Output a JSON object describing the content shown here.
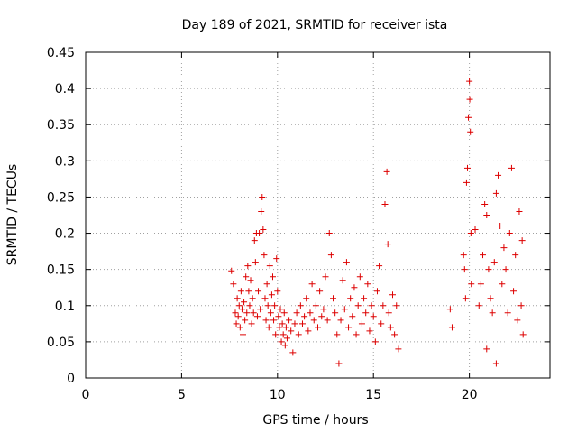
{
  "chart_data": {
    "type": "scatter",
    "title": "Day 189 of 2021, SRMTID for receiver ista",
    "xlabel": "GPS time / hours",
    "ylabel": "SRMTID / TECUs",
    "xlim": [
      0,
      24.2
    ],
    "ylim": [
      0,
      0.45
    ],
    "x_ticks": [
      0,
      5,
      10,
      15,
      20
    ],
    "x_tick_labels": [
      "0",
      "5",
      "10",
      "15",
      "20"
    ],
    "y_ticks": [
      0,
      0.05,
      0.1,
      0.15,
      0.2,
      0.25,
      0.3,
      0.35,
      0.4,
      0.45
    ],
    "y_tick_labels": [
      "0",
      "0.05",
      "0.1",
      "0.15",
      "0.2",
      "0.25",
      "0.3",
      "0.35",
      "0.4",
      "0.45"
    ],
    "grid": true,
    "legend": "none",
    "marker": "plus",
    "color": "#dd0000",
    "series": [
      {
        "values_note": "",
        "points": [
          [
            7.6,
            0.148
          ],
          [
            7.7,
            0.13
          ],
          [
            7.8,
            0.09
          ],
          [
            7.85,
            0.075
          ],
          [
            7.9,
            0.11
          ],
          [
            7.95,
            0.085
          ],
          [
            8.0,
            0.1
          ],
          [
            8.05,
            0.07
          ],
          [
            8.1,
            0.12
          ],
          [
            8.15,
            0.095
          ],
          [
            8.2,
            0.06
          ],
          [
            8.25,
            0.105
          ],
          [
            8.3,
            0.08
          ],
          [
            8.35,
            0.14
          ],
          [
            8.4,
            0.09
          ],
          [
            8.45,
            0.155
          ],
          [
            8.5,
            0.12
          ],
          [
            8.55,
            0.1
          ],
          [
            8.6,
            0.135
          ],
          [
            8.65,
            0.075
          ],
          [
            8.7,
            0.11
          ],
          [
            8.75,
            0.09
          ],
          [
            8.8,
            0.19
          ],
          [
            8.85,
            0.16
          ],
          [
            8.9,
            0.2
          ],
          [
            8.95,
            0.085
          ],
          [
            9.0,
            0.12
          ],
          [
            9.05,
            0.2
          ],
          [
            9.1,
            0.095
          ],
          [
            9.15,
            0.23
          ],
          [
            9.2,
            0.25
          ],
          [
            9.25,
            0.205
          ],
          [
            9.3,
            0.17
          ],
          [
            9.35,
            0.11
          ],
          [
            9.4,
            0.08
          ],
          [
            9.45,
            0.13
          ],
          [
            9.5,
            0.1
          ],
          [
            9.55,
            0.07
          ],
          [
            9.6,
            0.155
          ],
          [
            9.65,
            0.09
          ],
          [
            9.7,
            0.115
          ],
          [
            9.75,
            0.14
          ],
          [
            9.8,
            0.08
          ],
          [
            9.85,
            0.1
          ],
          [
            9.9,
            0.06
          ],
          [
            9.95,
            0.165
          ],
          [
            10.0,
            0.12
          ],
          [
            10.05,
            0.085
          ],
          [
            10.1,
            0.07
          ],
          [
            10.15,
            0.095
          ],
          [
            10.2,
            0.05
          ],
          [
            10.25,
            0.075
          ],
          [
            10.3,
            0.06
          ],
          [
            10.35,
            0.09
          ],
          [
            10.4,
            0.045
          ],
          [
            10.45,
            0.07
          ],
          [
            10.5,
            0.055
          ],
          [
            10.6,
            0.08
          ],
          [
            10.7,
            0.065
          ],
          [
            10.8,
            0.035
          ],
          [
            10.9,
            0.075
          ],
          [
            11.0,
            0.09
          ],
          [
            11.1,
            0.06
          ],
          [
            11.2,
            0.1
          ],
          [
            11.3,
            0.075
          ],
          [
            11.4,
            0.085
          ],
          [
            11.5,
            0.11
          ],
          [
            11.6,
            0.065
          ],
          [
            11.7,
            0.09
          ],
          [
            11.8,
            0.13
          ],
          [
            11.9,
            0.08
          ],
          [
            12.0,
            0.1
          ],
          [
            12.1,
            0.07
          ],
          [
            12.2,
            0.12
          ],
          [
            12.3,
            0.085
          ],
          [
            12.4,
            0.095
          ],
          [
            12.5,
            0.14
          ],
          [
            12.6,
            0.08
          ],
          [
            12.7,
            0.2
          ],
          [
            12.8,
            0.17
          ],
          [
            12.9,
            0.11
          ],
          [
            13.0,
            0.09
          ],
          [
            13.1,
            0.06
          ],
          [
            13.2,
            0.02
          ],
          [
            13.3,
            0.08
          ],
          [
            13.4,
            0.135
          ],
          [
            13.5,
            0.095
          ],
          [
            13.6,
            0.16
          ],
          [
            13.7,
            0.07
          ],
          [
            13.8,
            0.11
          ],
          [
            13.9,
            0.085
          ],
          [
            14.0,
            0.125
          ],
          [
            14.1,
            0.06
          ],
          [
            14.2,
            0.1
          ],
          [
            14.3,
            0.14
          ],
          [
            14.4,
            0.075
          ],
          [
            14.5,
            0.11
          ],
          [
            14.6,
            0.09
          ],
          [
            14.7,
            0.13
          ],
          [
            14.8,
            0.065
          ],
          [
            14.9,
            0.1
          ],
          [
            15.0,
            0.085
          ],
          [
            15.1,
            0.05
          ],
          [
            15.2,
            0.12
          ],
          [
            15.3,
            0.155
          ],
          [
            15.4,
            0.075
          ],
          [
            15.5,
            0.1
          ],
          [
            15.6,
            0.24
          ],
          [
            15.7,
            0.285
          ],
          [
            15.75,
            0.185
          ],
          [
            15.8,
            0.09
          ],
          [
            15.9,
            0.07
          ],
          [
            16.0,
            0.115
          ],
          [
            16.1,
            0.06
          ],
          [
            16.2,
            0.1
          ],
          [
            16.3,
            0.04
          ],
          [
            19.0,
            0.095
          ],
          [
            19.1,
            0.07
          ],
          [
            19.7,
            0.17
          ],
          [
            19.75,
            0.15
          ],
          [
            19.8,
            0.11
          ],
          [
            19.85,
            0.27
          ],
          [
            19.9,
            0.29
          ],
          [
            19.95,
            0.36
          ],
          [
            20.0,
            0.41
          ],
          [
            20.02,
            0.385
          ],
          [
            20.05,
            0.34
          ],
          [
            20.08,
            0.2
          ],
          [
            20.1,
            0.13
          ],
          [
            20.3,
            0.205
          ],
          [
            20.5,
            0.1
          ],
          [
            20.6,
            0.13
          ],
          [
            20.7,
            0.17
          ],
          [
            20.8,
            0.24
          ],
          [
            20.9,
            0.225
          ],
          [
            21.0,
            0.15
          ],
          [
            21.1,
            0.11
          ],
          [
            21.2,
            0.09
          ],
          [
            21.3,
            0.16
          ],
          [
            21.4,
            0.255
          ],
          [
            21.5,
            0.28
          ],
          [
            21.6,
            0.21
          ],
          [
            21.7,
            0.13
          ],
          [
            21.8,
            0.18
          ],
          [
            21.9,
            0.15
          ],
          [
            22.0,
            0.09
          ],
          [
            22.1,
            0.2
          ],
          [
            22.2,
            0.29
          ],
          [
            22.3,
            0.12
          ],
          [
            22.4,
            0.17
          ],
          [
            22.5,
            0.08
          ],
          [
            22.6,
            0.23
          ],
          [
            22.7,
            0.1
          ],
          [
            22.75,
            0.19
          ],
          [
            22.8,
            0.06
          ],
          [
            20.9,
            0.04
          ],
          [
            21.4,
            0.02
          ]
        ]
      }
    ]
  }
}
